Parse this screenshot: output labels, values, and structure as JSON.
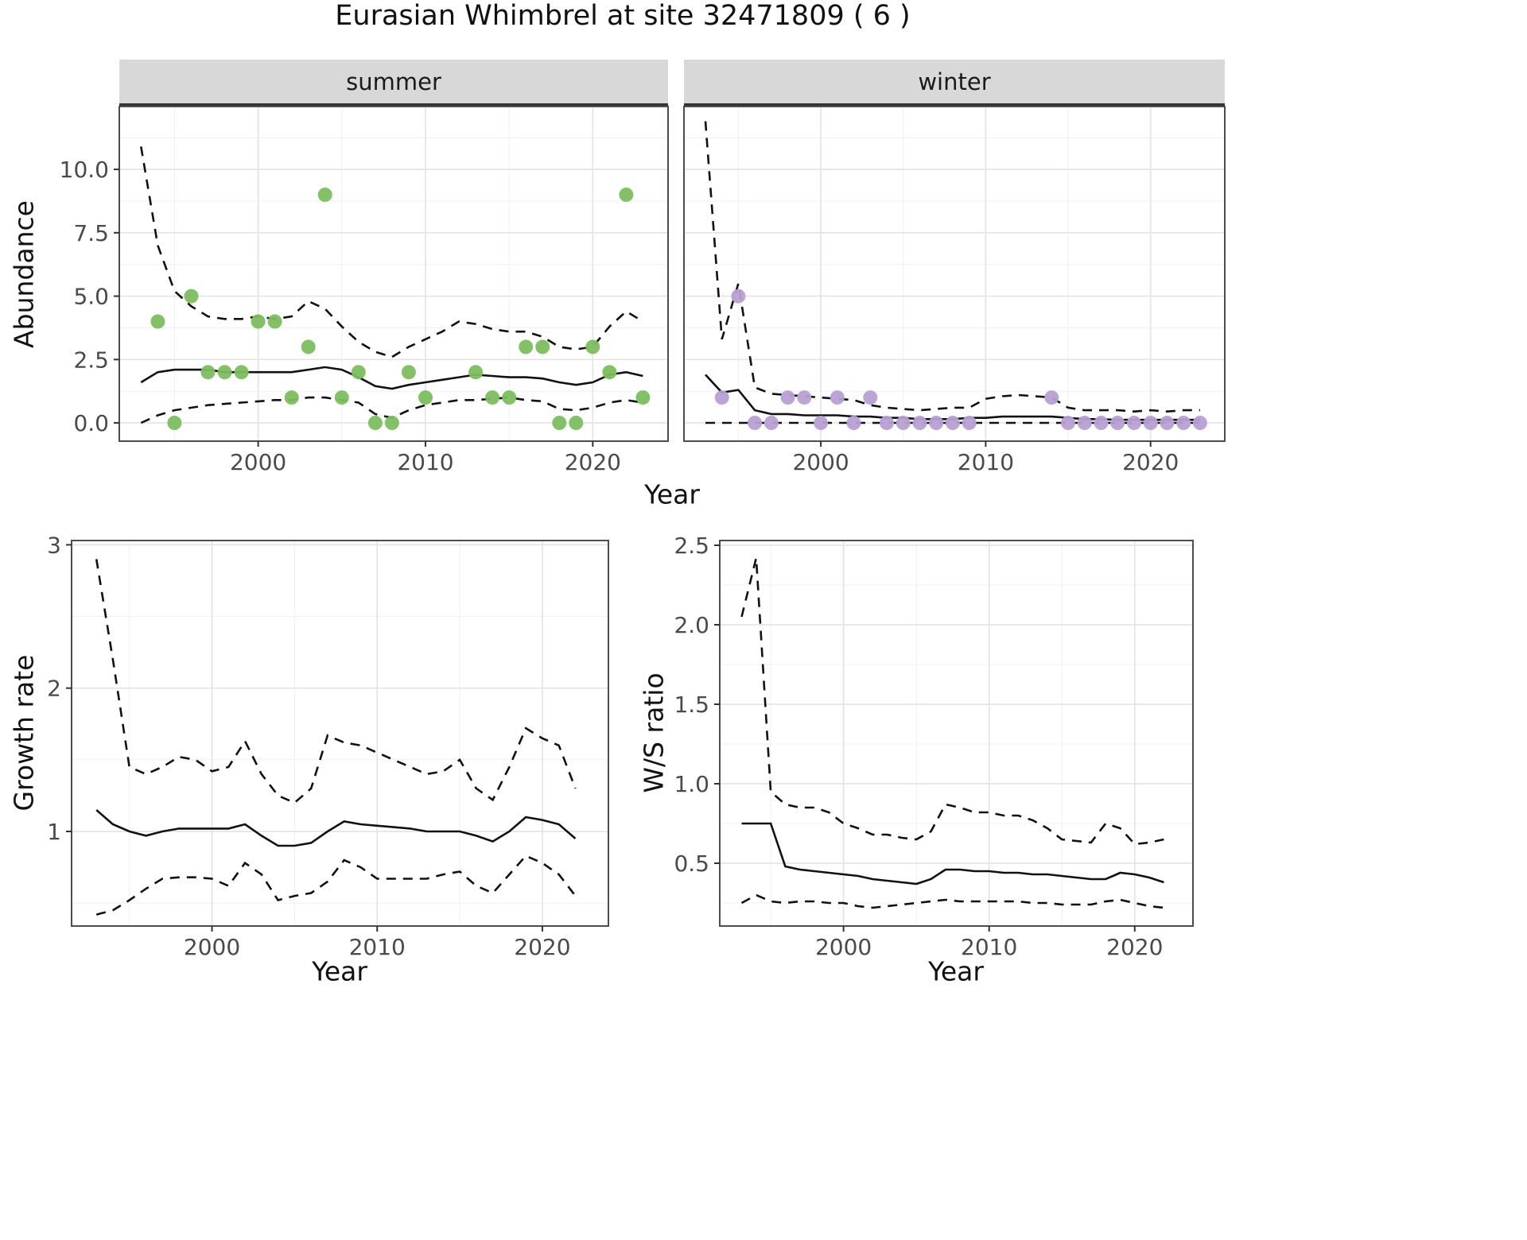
{
  "title": "Eurasian Whimbrel at site 32471809 ( 6 )",
  "colors": {
    "summer_points": "#7CBE5E",
    "winter_points": "#B79FD4",
    "line": "#111111",
    "grid_major": "#e4e4e4",
    "grid_minor": "#f1f1f1",
    "panel_border": "#4d4d4d",
    "tick_text": "#4a4a4a"
  },
  "chart_data": [
    {
      "id": "abundance-summer",
      "type": "scatter",
      "facet": "summer",
      "xlabel": "Year",
      "ylabel": "Abundance",
      "xlim": [
        1991.7,
        2024.5
      ],
      "ylim": [
        -0.72,
        12.48
      ],
      "xtick_values": [
        2000,
        2010,
        2020
      ],
      "xtick_labels": [
        "2000",
        "2010",
        "2020"
      ],
      "ytick_values": [
        0,
        2.5,
        5,
        7.5,
        10
      ],
      "ytick_labels": [
        "0.0",
        "2.5",
        "5.0",
        "7.5",
        "10.0"
      ],
      "line_x": [
        1993,
        1994,
        1995,
        1996,
        1997,
        1998,
        1999,
        2000,
        2001,
        2002,
        2003,
        2004,
        2005,
        2006,
        2007,
        2008,
        2009,
        2010,
        2011,
        2012,
        2013,
        2014,
        2015,
        2016,
        2017,
        2018,
        2019,
        2020,
        2021,
        2022,
        2023
      ],
      "fit": [
        1.6,
        2.0,
        2.1,
        2.1,
        2.1,
        2.0,
        2.0,
        2.0,
        2.0,
        2.0,
        2.1,
        2.2,
        2.1,
        1.8,
        1.45,
        1.35,
        1.5,
        1.6,
        1.7,
        1.8,
        1.9,
        1.85,
        1.8,
        1.8,
        1.75,
        1.6,
        1.5,
        1.6,
        1.9,
        2.0,
        1.85
      ],
      "upper_ci": [
        10.9,
        7.0,
        5.2,
        4.6,
        4.2,
        4.1,
        4.1,
        4.2,
        4.1,
        4.2,
        4.8,
        4.5,
        3.8,
        3.2,
        2.8,
        2.6,
        3.0,
        3.3,
        3.6,
        4.0,
        3.9,
        3.7,
        3.6,
        3.6,
        3.4,
        3.0,
        2.9,
        3.0,
        3.8,
        4.4,
        4.0
      ],
      "lower_ci": [
        0.0,
        0.3,
        0.5,
        0.6,
        0.7,
        0.75,
        0.8,
        0.85,
        0.9,
        0.9,
        1.0,
        1.0,
        0.9,
        0.8,
        0.35,
        0.2,
        0.5,
        0.7,
        0.8,
        0.9,
        0.9,
        0.95,
        1.0,
        0.9,
        0.85,
        0.55,
        0.5,
        0.6,
        0.8,
        0.9,
        0.8
      ],
      "points_x": [
        1994,
        1995,
        1996,
        1997,
        1998,
        1999,
        2000,
        2001,
        2002,
        2003,
        2004,
        2005,
        2006,
        2007,
        2008,
        2009,
        2010,
        2013,
        2014,
        2015,
        2016,
        2017,
        2018,
        2019,
        2020,
        2021,
        2022,
        2023
      ],
      "points_y": [
        4,
        0,
        5,
        2,
        2,
        2,
        4,
        4,
        1,
        3,
        9,
        1,
        2,
        0,
        0,
        2,
        1,
        2,
        1,
        1,
        3,
        3,
        0,
        0,
        3,
        2,
        9,
        1
      ],
      "point_color_key": "summer_points"
    },
    {
      "id": "abundance-winter",
      "type": "scatter",
      "facet": "winter",
      "xlabel": "Year",
      "ylabel": "Abundance",
      "xlim": [
        1991.7,
        2024.5
      ],
      "ylim": [
        -0.72,
        12.48
      ],
      "xtick_values": [
        2000,
        2010,
        2020
      ],
      "xtick_labels": [
        "2000",
        "2010",
        "2020"
      ],
      "ytick_values": [
        0,
        2.5,
        5,
        7.5,
        10
      ],
      "ytick_labels": [
        "0.0",
        "2.5",
        "5.0",
        "7.5",
        "10.0"
      ],
      "line_x": [
        1993,
        1994,
        1995,
        1996,
        1997,
        1998,
        1999,
        2000,
        2001,
        2002,
        2003,
        2004,
        2005,
        2006,
        2007,
        2008,
        2009,
        2010,
        2011,
        2012,
        2013,
        2014,
        2015,
        2016,
        2017,
        2018,
        2019,
        2020,
        2021,
        2022,
        2023
      ],
      "fit": [
        1.9,
        1.2,
        1.3,
        0.5,
        0.35,
        0.35,
        0.3,
        0.3,
        0.3,
        0.25,
        0.25,
        0.2,
        0.2,
        0.15,
        0.15,
        0.15,
        0.2,
        0.2,
        0.25,
        0.25,
        0.25,
        0.25,
        0.2,
        0.15,
        0.15,
        0.12,
        0.12,
        0.12,
        0.12,
        0.12,
        0.12
      ],
      "upper_ci": [
        11.9,
        3.3,
        5.5,
        1.4,
        1.15,
        1.1,
        1.05,
        1.0,
        0.95,
        0.9,
        0.7,
        0.6,
        0.55,
        0.5,
        0.55,
        0.6,
        0.6,
        0.95,
        1.05,
        1.1,
        1.05,
        1.0,
        0.6,
        0.5,
        0.5,
        0.5,
        0.45,
        0.5,
        0.45,
        0.5,
        0.5
      ],
      "lower_ci": [
        0,
        0,
        0,
        0,
        0,
        0,
        0,
        0,
        0,
        0,
        0,
        0,
        0,
        0,
        0,
        0,
        0,
        0,
        0,
        0,
        0,
        0,
        0,
        0,
        0,
        0,
        0,
        0,
        0,
        0,
        0
      ],
      "points_x": [
        1994,
        1995,
        1996,
        1997,
        1998,
        1999,
        2000,
        2001,
        2002,
        2003,
        2004,
        2005,
        2006,
        2007,
        2008,
        2009,
        2014,
        2015,
        2016,
        2017,
        2018,
        2019,
        2020,
        2021,
        2022,
        2023
      ],
      "points_y": [
        1,
        5,
        0,
        0,
        1,
        1,
        0,
        1,
        0,
        1,
        0,
        0,
        0,
        0,
        0,
        0,
        1,
        0,
        0,
        0,
        0,
        0,
        0,
        0,
        0,
        0
      ],
      "point_color_key": "winter_points"
    },
    {
      "id": "growth-rate",
      "type": "line",
      "xlabel": "Year",
      "ylabel": "Growth rate",
      "xlim": [
        1991.5,
        2024
      ],
      "ylim": [
        0.34,
        3.03
      ],
      "xtick_values": [
        2000,
        2010,
        2020
      ],
      "xtick_labels": [
        "2000",
        "2010",
        "2020"
      ],
      "ytick_values": [
        1,
        2,
        3
      ],
      "ytick_labels": [
        "1",
        "2",
        "3"
      ],
      "line_x": [
        1993,
        1994,
        1995,
        1996,
        1997,
        1998,
        1999,
        2000,
        2001,
        2002,
        2003,
        2004,
        2005,
        2006,
        2007,
        2008,
        2009,
        2010,
        2011,
        2012,
        2013,
        2014,
        2015,
        2016,
        2017,
        2018,
        2019,
        2020,
        2021,
        2022
      ],
      "fit": [
        1.15,
        1.05,
        1.0,
        0.97,
        1.0,
        1.02,
        1.02,
        1.02,
        1.02,
        1.05,
        0.97,
        0.9,
        0.9,
        0.92,
        1.0,
        1.07,
        1.05,
        1.04,
        1.03,
        1.02,
        1.0,
        1.0,
        1.0,
        0.97,
        0.93,
        1.0,
        1.1,
        1.08,
        1.05,
        0.95
      ],
      "upper_ci": [
        2.9,
        2.2,
        1.45,
        1.4,
        1.45,
        1.52,
        1.5,
        1.42,
        1.45,
        1.63,
        1.4,
        1.25,
        1.2,
        1.3,
        1.67,
        1.62,
        1.6,
        1.55,
        1.5,
        1.45,
        1.4,
        1.42,
        1.5,
        1.3,
        1.22,
        1.45,
        1.72,
        1.65,
        1.6,
        1.3
      ],
      "lower_ci": [
        0.42,
        0.45,
        0.52,
        0.6,
        0.67,
        0.68,
        0.68,
        0.67,
        0.62,
        0.78,
        0.7,
        0.52,
        0.55,
        0.57,
        0.65,
        0.8,
        0.75,
        0.67,
        0.67,
        0.67,
        0.67,
        0.7,
        0.72,
        0.62,
        0.57,
        0.7,
        0.83,
        0.78,
        0.7,
        0.55
      ]
    },
    {
      "id": "ws-ratio",
      "type": "line",
      "xlabel": "Year",
      "ylabel": "W/S ratio",
      "xlim": [
        1991.5,
        2024
      ],
      "ylim": [
        0.105,
        2.53
      ],
      "xtick_values": [
        2000,
        2010,
        2020
      ],
      "xtick_labels": [
        "2000",
        "2010",
        "2020"
      ],
      "ytick_values": [
        0.5,
        1.0,
        1.5,
        2.0,
        2.5
      ],
      "ytick_labels": [
        "0.5",
        "1.0",
        "1.5",
        "2.0",
        "2.5"
      ],
      "line_x": [
        1993,
        1994,
        1995,
        1996,
        1997,
        1998,
        1999,
        2000,
        2001,
        2002,
        2003,
        2004,
        2005,
        2006,
        2007,
        2008,
        2009,
        2010,
        2011,
        2012,
        2013,
        2014,
        2015,
        2016,
        2017,
        2018,
        2019,
        2020,
        2021,
        2022
      ],
      "fit": [
        0.75,
        0.75,
        0.75,
        0.48,
        0.46,
        0.45,
        0.44,
        0.43,
        0.42,
        0.4,
        0.39,
        0.38,
        0.37,
        0.4,
        0.46,
        0.46,
        0.45,
        0.45,
        0.44,
        0.44,
        0.43,
        0.43,
        0.42,
        0.41,
        0.4,
        0.4,
        0.44,
        0.43,
        0.41,
        0.38
      ],
      "upper_ci": [
        2.05,
        2.42,
        0.95,
        0.87,
        0.85,
        0.85,
        0.82,
        0.75,
        0.72,
        0.68,
        0.68,
        0.66,
        0.65,
        0.7,
        0.87,
        0.85,
        0.82,
        0.82,
        0.8,
        0.8,
        0.77,
        0.72,
        0.65,
        0.64,
        0.63,
        0.75,
        0.72,
        0.62,
        0.63,
        0.65
      ],
      "lower_ci": [
        0.25,
        0.3,
        0.26,
        0.25,
        0.26,
        0.26,
        0.25,
        0.25,
        0.23,
        0.22,
        0.23,
        0.24,
        0.25,
        0.26,
        0.27,
        0.26,
        0.26,
        0.26,
        0.26,
        0.26,
        0.25,
        0.25,
        0.24,
        0.24,
        0.24,
        0.26,
        0.27,
        0.25,
        0.23,
        0.22
      ]
    }
  ]
}
